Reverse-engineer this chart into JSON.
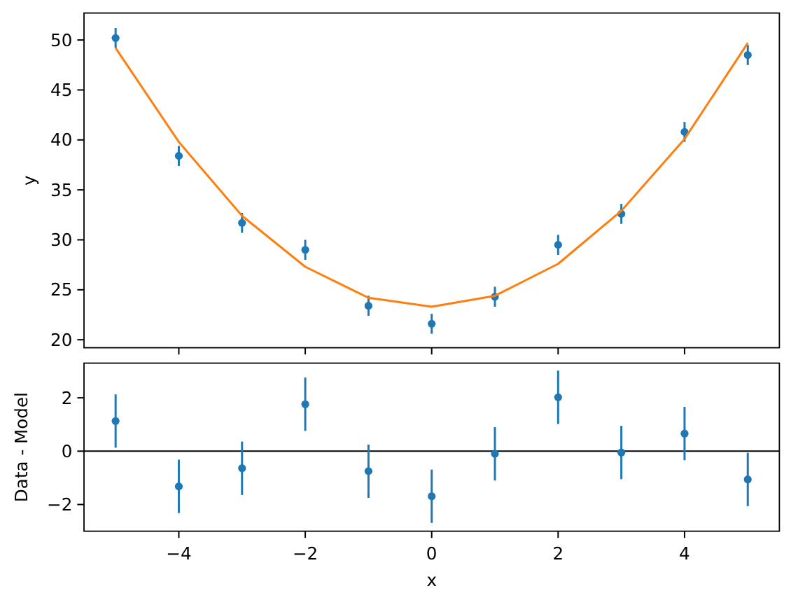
{
  "chart_data": [
    {
      "type": "scatter",
      "ylabel": "y",
      "x": [
        -5,
        -4,
        -3,
        -2,
        -1,
        0,
        1,
        2,
        3,
        4,
        5
      ],
      "series": [
        {
          "type": "scatter",
          "color": "#1f77b4",
          "marker": "circle",
          "values": [
            50.2,
            38.4,
            31.7,
            29.0,
            23.4,
            21.6,
            24.3,
            29.5,
            32.6,
            40.8,
            48.5
          ],
          "errors": [
            1,
            1,
            1,
            1,
            1,
            1,
            1,
            1,
            1,
            1,
            1
          ]
        },
        {
          "type": "line",
          "color": "#ff7f0e",
          "values": [
            49.2,
            39.8,
            32.4,
            27.3,
            24.2,
            23.3,
            24.4,
            27.6,
            32.9,
            40.1,
            49.7
          ]
        }
      ],
      "xlim": [
        -5.5,
        5.5
      ],
      "xticks": [
        {
          "value": -4,
          "label": null
        },
        {
          "value": -2,
          "label": null
        },
        {
          "value": 0,
          "label": null
        },
        {
          "value": 2,
          "label": null
        },
        {
          "value": 4,
          "label": null
        }
      ],
      "ylim": [
        19.2,
        52.7
      ],
      "yticks": [
        20,
        25,
        30,
        35,
        40,
        45,
        50
      ],
      "tick_labels": "y"
    },
    {
      "type": "scatter",
      "xlabel": "x",
      "ylabel": "Data - Model",
      "x": [
        -5,
        -4,
        -3,
        -2,
        -1,
        0,
        1,
        2,
        3,
        4,
        5
      ],
      "values": [
        1.13,
        -1.32,
        -0.64,
        1.76,
        -0.75,
        -1.69,
        -0.1,
        2.02,
        -0.05,
        0.66,
        -1.06
      ],
      "errors": [
        1,
        1,
        1,
        1,
        1,
        1,
        1,
        1,
        1,
        1,
        1
      ],
      "color": "#1f77b4",
      "marker": "circle",
      "xlim": [
        -5.5,
        5.5
      ],
      "xticks": [
        {
          "value": -4,
          "label": "−4"
        },
        {
          "value": -2,
          "label": "−2"
        },
        0,
        2,
        4
      ],
      "ylim": [
        -3.0,
        3.3
      ],
      "yticks": [
        {
          "value": -2,
          "label": "−2"
        },
        0,
        2
      ],
      "ref_lines": [
        {
          "axis": "y",
          "value": 0,
          "color": "#000000"
        }
      ]
    }
  ]
}
